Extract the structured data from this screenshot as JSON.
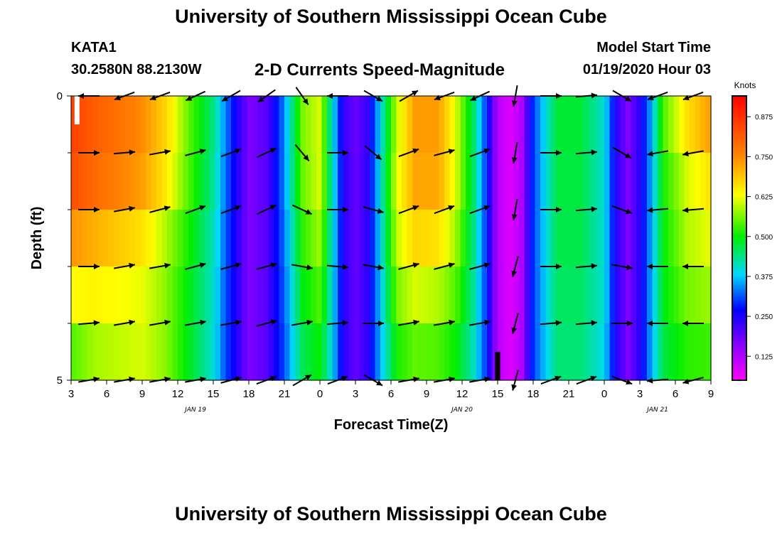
{
  "page": {
    "title_top": "University of Southern Mississippi Ocean Cube",
    "title_bottom": "University of Southern Mississippi Ocean Cube",
    "station": "KATA1",
    "coords": "30.2580N 88.2130W",
    "subtitle": "2-D Currents Speed-Magnitude",
    "model_start_label": "Model Start Time",
    "model_start_value": "01/19/2020 Hour 03"
  },
  "chart_data": {
    "type": "heatmap",
    "title": "2-D Currents Speed-Magnitude",
    "xlabel": "Forecast Time(Z)",
    "ylabel": "Depth (ft)",
    "x_range_hours": [
      0,
      54
    ],
    "ylim": [
      0,
      5
    ],
    "x_ticks": [
      {
        "hour": 0,
        "label": "3"
      },
      {
        "hour": 3,
        "label": "6"
      },
      {
        "hour": 6,
        "label": "9"
      },
      {
        "hour": 9,
        "label": "12"
      },
      {
        "hour": 12,
        "label": "15"
      },
      {
        "hour": 15,
        "label": "18"
      },
      {
        "hour": 18,
        "label": "21"
      },
      {
        "hour": 21,
        "label": "0"
      },
      {
        "hour": 24,
        "label": "3"
      },
      {
        "hour": 27,
        "label": "6"
      },
      {
        "hour": 30,
        "label": "9"
      },
      {
        "hour": 33,
        "label": "12"
      },
      {
        "hour": 36,
        "label": "15"
      },
      {
        "hour": 39,
        "label": "18"
      },
      {
        "hour": 42,
        "label": "21"
      },
      {
        "hour": 45,
        "label": "0"
      },
      {
        "hour": 48,
        "label": "3"
      },
      {
        "hour": 51,
        "label": "6"
      },
      {
        "hour": 54,
        "label": "9"
      }
    ],
    "y_tick_labels": [
      {
        "depth": 0,
        "label": "0"
      },
      {
        "depth": 5,
        "label": "5"
      }
    ],
    "y_minor_ticks": [
      1,
      2,
      3,
      4
    ],
    "date_labels": [
      {
        "hour": 10.5,
        "label": "JAN 19"
      },
      {
        "hour": 33,
        "label": "JAN 20"
      },
      {
        "hour": 49.5,
        "label": "JAN 21"
      }
    ],
    "colorbar": {
      "title": "Knots",
      "range": [
        0.05,
        0.94
      ],
      "ticks": [
        0.125,
        0.25,
        0.375,
        0.5,
        0.625,
        0.75,
        0.875
      ],
      "tick_labels": [
        "0.125",
        "0.250",
        "0.375",
        "0.500",
        "0.625",
        "0.750",
        "0.875"
      ],
      "stops": [
        {
          "v": 0.05,
          "color": "#ff00ff"
        },
        {
          "v": 0.16,
          "color": "#8a00ff"
        },
        {
          "v": 0.27,
          "color": "#0000ff"
        },
        {
          "v": 0.38,
          "color": "#00d8ff"
        },
        {
          "v": 0.5,
          "color": "#00ee00"
        },
        {
          "v": 0.63,
          "color": "#ffff00"
        },
        {
          "v": 0.76,
          "color": "#ff8000"
        },
        {
          "v": 0.94,
          "color": "#ff0000"
        }
      ]
    },
    "depth_rows": [
      0.5,
      1.5,
      2.5,
      3.5,
      4.5
    ],
    "speed_profile_hours": [
      0,
      2,
      6,
      8,
      10,
      12,
      13,
      14,
      15,
      16.5,
      18,
      19.5,
      21,
      22,
      23,
      24,
      25,
      26,
      27.5,
      29,
      31,
      32.5,
      34,
      35,
      36,
      37,
      38,
      39,
      41,
      43,
      45,
      46,
      47,
      48,
      49,
      50,
      52,
      54
    ],
    "speed_profile_rows": [
      [
        0.84,
        0.8,
        0.74,
        0.66,
        0.54,
        0.44,
        0.34,
        0.25,
        0.17,
        0.2,
        0.34,
        0.56,
        0.6,
        0.4,
        0.22,
        0.18,
        0.22,
        0.36,
        0.58,
        0.72,
        0.72,
        0.6,
        0.44,
        0.3,
        0.12,
        0.08,
        0.12,
        0.3,
        0.48,
        0.48,
        0.4,
        0.24,
        0.16,
        0.24,
        0.36,
        0.56,
        0.7,
        0.78
      ],
      [
        0.86,
        0.82,
        0.76,
        0.68,
        0.55,
        0.44,
        0.34,
        0.25,
        0.17,
        0.2,
        0.34,
        0.56,
        0.62,
        0.42,
        0.24,
        0.19,
        0.23,
        0.38,
        0.62,
        0.74,
        0.74,
        0.62,
        0.46,
        0.3,
        0.12,
        0.08,
        0.12,
        0.3,
        0.47,
        0.47,
        0.4,
        0.24,
        0.17,
        0.24,
        0.36,
        0.52,
        0.62,
        0.68
      ],
      [
        0.8,
        0.76,
        0.7,
        0.62,
        0.52,
        0.42,
        0.32,
        0.24,
        0.17,
        0.2,
        0.34,
        0.54,
        0.6,
        0.42,
        0.24,
        0.19,
        0.23,
        0.38,
        0.62,
        0.7,
        0.7,
        0.6,
        0.44,
        0.3,
        0.12,
        0.08,
        0.12,
        0.3,
        0.47,
        0.47,
        0.4,
        0.24,
        0.17,
        0.24,
        0.36,
        0.5,
        0.6,
        0.64
      ],
      [
        0.68,
        0.66,
        0.62,
        0.56,
        0.49,
        0.41,
        0.32,
        0.24,
        0.17,
        0.2,
        0.32,
        0.5,
        0.56,
        0.4,
        0.24,
        0.19,
        0.23,
        0.36,
        0.58,
        0.64,
        0.62,
        0.56,
        0.43,
        0.3,
        0.12,
        0.08,
        0.12,
        0.3,
        0.46,
        0.46,
        0.4,
        0.24,
        0.17,
        0.24,
        0.36,
        0.5,
        0.58,
        0.6
      ],
      [
        0.58,
        0.62,
        0.62,
        0.58,
        0.49,
        0.4,
        0.31,
        0.24,
        0.17,
        0.2,
        0.32,
        0.48,
        0.52,
        0.4,
        0.24,
        0.19,
        0.23,
        0.36,
        0.54,
        0.58,
        0.56,
        0.52,
        0.42,
        0.3,
        0.12,
        0.08,
        0.12,
        0.3,
        0.45,
        0.45,
        0.4,
        0.24,
        0.17,
        0.24,
        0.36,
        0.48,
        0.54,
        0.56
      ],
      [
        0.5,
        0.55,
        0.6,
        0.56,
        0.48,
        0.4,
        0.31,
        0.24,
        0.17,
        0.2,
        0.3,
        0.44,
        0.48,
        0.38,
        0.24,
        0.19,
        0.23,
        0.34,
        0.48,
        0.52,
        0.52,
        0.48,
        0.4,
        0.3,
        0.12,
        0.08,
        0.12,
        0.3,
        0.44,
        0.44,
        0.38,
        0.24,
        0.17,
        0.24,
        0.36,
        0.46,
        0.5,
        0.5
      ]
    ],
    "speed_profile_depths": [
      0,
      1,
      2,
      3,
      4,
      5
    ],
    "vector_hours": [
      1.5,
      4.5,
      7.5,
      10.5,
      13.5,
      16.5,
      19.5,
      22.5,
      25.5,
      28.5,
      31.5,
      34.5,
      37.5,
      40.5,
      43.5,
      46.5,
      49.5,
      52.5
    ],
    "vector_depths": [
      0,
      1,
      2,
      3,
      4,
      5
    ],
    "vector_direction_deg": [
      [
        270,
        250,
        250,
        245,
        240,
        235,
        145,
        270,
        120,
        60,
        250,
        245,
        190,
        90,
        85,
        120,
        250,
        250
      ],
      [
        90,
        85,
        80,
        75,
        70,
        65,
        140,
        90,
        130,
        70,
        75,
        70,
        190,
        90,
        85,
        120,
        260,
        260
      ],
      [
        90,
        80,
        75,
        70,
        70,
        65,
        115,
        90,
        105,
        70,
        70,
        70,
        190,
        90,
        85,
        110,
        265,
        265
      ],
      [
        90,
        80,
        80,
        75,
        75,
        75,
        100,
        95,
        100,
        75,
        75,
        75,
        195,
        90,
        85,
        100,
        270,
        270
      ],
      [
        85,
        80,
        80,
        80,
        80,
        75,
        80,
        85,
        90,
        80,
        80,
        80,
        195,
        85,
        85,
        90,
        270,
        270
      ],
      [
        80,
        80,
        80,
        80,
        75,
        70,
        60,
        70,
        120,
        80,
        80,
        80,
        195,
        70,
        70,
        110,
        265,
        255
      ]
    ],
    "markers": [
      {
        "hour": 0.5,
        "depth_from": 0,
        "depth_to": 0.5,
        "color": "#ffffff"
      },
      {
        "hour": 36,
        "depth_from": 4.5,
        "depth_to": 5,
        "color": "#000000"
      }
    ]
  }
}
